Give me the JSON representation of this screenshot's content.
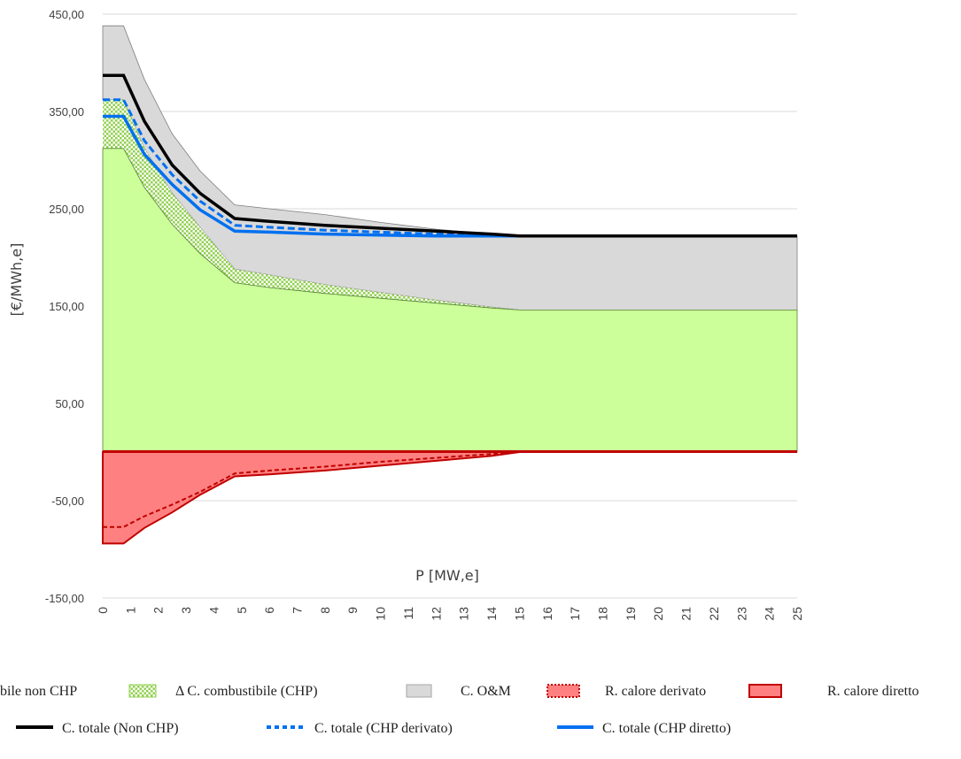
{
  "chart_data": {
    "type": "area",
    "xlabel": "P [MW,e]",
    "ylabel": "[€/MWh,e]",
    "ylim": [
      -150,
      450
    ],
    "y_ticks": [
      "450,00",
      "350,00",
      "250,00",
      "150,00",
      "50,00",
      "-50,00",
      "-150,00"
    ],
    "y_tick_values": [
      450,
      350,
      250,
      150,
      50,
      -50,
      -150
    ],
    "x_ticks": [
      "0",
      "1",
      "2",
      "3",
      "4",
      "5",
      "6",
      "7",
      "8",
      "9",
      "10",
      "11",
      "12",
      "13",
      "14",
      "15",
      "16",
      "17",
      "18",
      "19",
      "20",
      "21",
      "22",
      "23",
      "24",
      "25"
    ],
    "x": [
      0,
      0.75,
      1.5,
      2.5,
      3.5,
      4.75,
      6,
      8,
      10,
      12,
      14,
      15,
      25
    ],
    "grid": "horizontal",
    "legend_position": "bottom",
    "series": [
      {
        "name": "C. combustibile non CHP",
        "kind": "area",
        "color": "#ccff99",
        "values": [
          312,
          312,
          272,
          234,
          204,
          174,
          169,
          163,
          158,
          153,
          148,
          146,
          146
        ]
      },
      {
        "name": "Δ C. combustibile (CHP)",
        "kind": "area-pattern",
        "color": "#92d050",
        "values": [
          362,
          362,
          312,
          266,
          231,
          188,
          182,
          172,
          164,
          156,
          149,
          146,
          146
        ]
      },
      {
        "name": "C. O&M",
        "kind": "area",
        "color": "#d9d9d9",
        "values": [
          438,
          438,
          383,
          327,
          289,
          254,
          250,
          244,
          236,
          229,
          224,
          222,
          222
        ]
      },
      {
        "name": "R. calore derivato",
        "kind": "area-dotted",
        "color": "#c00000",
        "values": [
          -77,
          -77,
          -66,
          -54,
          -41,
          -22,
          -19,
          -15,
          -10,
          -6,
          -2,
          0,
          0
        ]
      },
      {
        "name": "R. calore diretto",
        "kind": "area",
        "color": "#ff8080",
        "values": [
          -94,
          -94,
          -78,
          -62,
          -44,
          -25,
          -23,
          -19,
          -14,
          -9,
          -4,
          0,
          0
        ]
      },
      {
        "name": "C. totale (Non CHP)",
        "kind": "line",
        "color": "#000000",
        "values": [
          387,
          387,
          340,
          295,
          266,
          240,
          237,
          233,
          230,
          227,
          224,
          222,
          222
        ]
      },
      {
        "name": "C. totale (CHP derivato)",
        "kind": "line-dash",
        "color": "#0070f0",
        "values": [
          362,
          362,
          320,
          285,
          258,
          233,
          231,
          228,
          226,
          224,
          223,
          222,
          222
        ]
      },
      {
        "name": "C. totale (CHP diretto)",
        "kind": "line",
        "color": "#0070f0",
        "values": [
          345,
          345,
          306,
          275,
          249,
          227,
          226,
          224,
          223,
          222,
          222,
          222,
          222
        ]
      }
    ],
    "legend": [
      "bile non CHP",
      "Δ C. combustibile (CHP)",
      "C. O&M",
      "R. calore derivato",
      "R. calore diretto",
      "C. totale (Non CHP)",
      "C. totale (CHP derivato)",
      "C. totale (CHP diretto)"
    ]
  }
}
